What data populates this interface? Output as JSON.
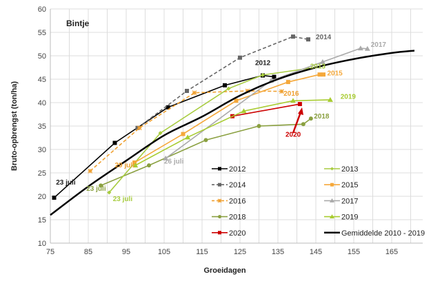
{
  "chart_data": {
    "type": "line",
    "title": "Bintje",
    "xlabel": "Groeidagen",
    "ylabel": "Bruto-opbrengst (ton/ha)",
    "xlim": [
      75,
      180
    ],
    "ylim": [
      10,
      60
    ],
    "xticks": [
      75,
      85,
      95,
      105,
      115,
      125,
      135,
      145,
      155,
      165
    ],
    "yticks": [
      10,
      15,
      20,
      25,
      30,
      35,
      40,
      45,
      50,
      55,
      60
    ],
    "grid": true,
    "legend": "bottom-right",
    "series": [
      {
        "name": "2012",
        "color": "#000000",
        "dash": false,
        "marker": "square",
        "label": "2012",
        "points": [
          [
            76,
            19.7
          ],
          [
            92,
            31.4
          ],
          [
            106,
            39
          ],
          [
            121,
            43.7
          ],
          [
            131,
            45.8
          ],
          [
            134,
            45.5
          ]
        ]
      },
      {
        "name": "2014",
        "color": "#666666",
        "dash": true,
        "marker": "square",
        "label": "2014",
        "points": [
          [
            98,
            34.6
          ],
          [
            111,
            42.5
          ],
          [
            125,
            49.6
          ],
          [
            139,
            54.1
          ],
          [
            143,
            53.5
          ]
        ]
      },
      {
        "name": "2016",
        "color": "#f0a030",
        "dash": true,
        "marker": "star",
        "label": "2016",
        "points": [
          [
            85.5,
            25.4
          ],
          [
            98.5,
            34.6
          ],
          [
            113,
            42.1
          ],
          [
            127,
            42.5
          ],
          [
            136,
            42.4
          ]
        ]
      },
      {
        "name": "2018",
        "color": "#8aa040",
        "dash": false,
        "marker": "circle",
        "label": "2018",
        "points": [
          [
            88.3,
            22.3
          ],
          [
            101,
            26.6
          ],
          [
            116,
            32
          ],
          [
            130,
            35
          ],
          [
            141.7,
            35.4
          ],
          [
            143.7,
            36.6
          ]
        ]
      },
      {
        "name": "2020",
        "color": "#cc0000",
        "dash": false,
        "marker": "square",
        "label": "2020",
        "points": [
          [
            123,
            37.1
          ],
          [
            140.8,
            39.7
          ]
        ]
      },
      {
        "name": "2013",
        "color": "#a8cc40",
        "dash": false,
        "marker": "diamond",
        "label": "2013",
        "points": [
          [
            90.5,
            20.8
          ],
          [
            104,
            33.5
          ],
          [
            122,
            43
          ],
          [
            131,
            45.9
          ],
          [
            143,
            47.3
          ]
        ]
      },
      {
        "name": "2015",
        "color": "#f5a83a",
        "dash": false,
        "marker": "square",
        "label": "2015",
        "points": [
          [
            97.2,
            27.2
          ],
          [
            110,
            33.3
          ],
          [
            124,
            40.4
          ],
          [
            137.7,
            44.4
          ],
          [
            146,
            46
          ],
          [
            147,
            46
          ]
        ]
      },
      {
        "name": "2017",
        "color": "#aaaaaa",
        "dash": false,
        "marker": "triangle",
        "label": "2017",
        "points": [
          [
            105.4,
            28.1
          ],
          [
            133.2,
            44.7
          ],
          [
            146.8,
            48.7
          ],
          [
            156.8,
            51.6
          ],
          [
            158.6,
            51.5
          ]
        ]
      },
      {
        "name": "2019",
        "color": "#a8cc30",
        "dash": false,
        "marker": "triangle",
        "label": "2019",
        "points": [
          [
            97.4,
            26.6
          ],
          [
            111.2,
            32.6
          ],
          [
            126,
            38.2
          ],
          [
            139,
            40.4
          ],
          [
            148.8,
            40.6
          ]
        ]
      },
      {
        "name": "Gemiddelde 2010 - 2019",
        "color": "#000000",
        "dash": false,
        "marker": "none",
        "thick": true,
        "points": [
          [
            75,
            16
          ],
          [
            85,
            22.1
          ],
          [
            95,
            27.6
          ],
          [
            105,
            33
          ],
          [
            115,
            37
          ],
          [
            125,
            41.5
          ],
          [
            135,
            45
          ],
          [
            145,
            47.5
          ],
          [
            155,
            49.3
          ],
          [
            165,
            50.6
          ],
          [
            171,
            51.1
          ]
        ]
      }
    ],
    "annotations": [
      {
        "text": "23 juli",
        "color": "#222222",
        "x": 76.5,
        "y": 22.5
      },
      {
        "text": "23 juli",
        "color": "#8aa040",
        "x": 84.5,
        "y": 21.2
      },
      {
        "text": "23 juli",
        "color": "#a8cc40",
        "x": 91.5,
        "y": 19
      },
      {
        "text": "29 juli",
        "color": "#f0a030",
        "x": 92,
        "y": 26.2
      },
      {
        "text": "26 juli",
        "color": "#aaaaaa",
        "x": 105,
        "y": 27
      },
      {
        "text": "2012",
        "color": "#222222",
        "x": 129,
        "y": 48
      },
      {
        "text": "2014",
        "color": "#666666",
        "x": 145,
        "y": 53.5
      },
      {
        "text": "2017",
        "color": "#aaaaaa",
        "x": 159.5,
        "y": 51.9
      },
      {
        "text": "2013",
        "color": "#a8cc40",
        "x": 143.5,
        "y": 47.3
      },
      {
        "text": "2015",
        "color": "#f5a83a",
        "x": 148,
        "y": 45.8
      },
      {
        "text": "2016",
        "color": "#f0a030",
        "x": 136.5,
        "y": 41.5
      },
      {
        "text": "2019",
        "color": "#a8cc30",
        "x": 151.5,
        "y": 40.8
      },
      {
        "text": "2018",
        "color": "#8aa040",
        "x": 144.5,
        "y": 36.6
      },
      {
        "text": "2020",
        "color": "#cc0000",
        "x": 137,
        "y": 32.7
      }
    ]
  }
}
